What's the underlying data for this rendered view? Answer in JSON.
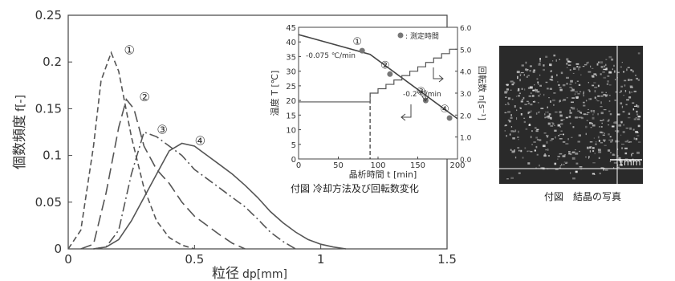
{
  "chart_data": [
    {
      "type": "line",
      "xlabel": "粒径 dp[mm]",
      "ylabel": "個数頻度 f[-]",
      "xlim": [
        0,
        1.5
      ],
      "ylim": [
        0,
        0.25
      ],
      "xticks": [
        "0",
        "0.5",
        "1",
        "1.5"
      ],
      "yticks": [
        "0",
        "0.05",
        "0.1",
        "0.15",
        "0.2",
        "0.25"
      ],
      "grid": false,
      "series": [
        {
          "name": "①",
          "style": "short-dash",
          "x": [
            0,
            0.05,
            0.1,
            0.13,
            0.17,
            0.2,
            0.25,
            0.3,
            0.35,
            0.4,
            0.45,
            0.5
          ],
          "y": [
            0,
            0.02,
            0.11,
            0.18,
            0.21,
            0.19,
            0.12,
            0.065,
            0.03,
            0.012,
            0.004,
            0
          ]
        },
        {
          "name": "②",
          "style": "long-dash",
          "x": [
            0.05,
            0.1,
            0.15,
            0.2,
            0.23,
            0.26,
            0.3,
            0.35,
            0.4,
            0.45,
            0.5,
            0.55,
            0.6,
            0.65,
            0.7
          ],
          "y": [
            0,
            0.005,
            0.06,
            0.13,
            0.16,
            0.15,
            0.11,
            0.085,
            0.07,
            0.05,
            0.035,
            0.025,
            0.015,
            0.006,
            0
          ]
        },
        {
          "name": "③",
          "style": "dash-dot",
          "x": [
            0.1,
            0.15,
            0.2,
            0.25,
            0.3,
            0.35,
            0.4,
            0.45,
            0.5,
            0.55,
            0.6,
            0.65,
            0.7,
            0.75,
            0.8,
            0.85,
            0.9
          ],
          "y": [
            0,
            0.002,
            0.02,
            0.08,
            0.125,
            0.12,
            0.11,
            0.1,
            0.085,
            0.075,
            0.065,
            0.055,
            0.045,
            0.032,
            0.018,
            0.008,
            0
          ]
        },
        {
          "name": "④",
          "style": "solid",
          "x": [
            0.1,
            0.15,
            0.2,
            0.25,
            0.3,
            0.35,
            0.4,
            0.45,
            0.5,
            0.55,
            0.6,
            0.65,
            0.7,
            0.75,
            0.8,
            0.85,
            0.9,
            0.95,
            1.0,
            1.05,
            1.1
          ],
          "y": [
            0,
            0.002,
            0.01,
            0.03,
            0.055,
            0.08,
            0.105,
            0.113,
            0.11,
            0.1,
            0.09,
            0.08,
            0.068,
            0.055,
            0.04,
            0.028,
            0.018,
            0.01,
            0.005,
            0.002,
            0
          ]
        }
      ]
    },
    {
      "type": "line",
      "xlabel": "晶析時間 t [min]",
      "ylabel": "温度 T [℃]",
      "y2label": "回転数 n[s⁻¹]",
      "xlim": [
        0,
        200
      ],
      "ylim": [
        0,
        45
      ],
      "y2lim": [
        0,
        6.0
      ],
      "xticks": [
        "0",
        "50",
        "100",
        "150",
        "200"
      ],
      "yticks": [
        "0",
        "5",
        "10",
        "15",
        "20",
        "25",
        "30",
        "35",
        "40",
        "45"
      ],
      "y2ticks": [
        "0.0",
        "1.0",
        "2.0",
        "3.0",
        "4.0",
        "5.0",
        "6.0"
      ],
      "legend": "● : 測定時間",
      "annotations": [
        "-0.075 ℃/min",
        "-0.2℃/min"
      ],
      "series": [
        {
          "name": "温度",
          "x": [
            0,
            90,
            200
          ],
          "y": [
            42.5,
            35.75,
            13.75
          ]
        },
        {
          "name": "回転数",
          "x": [
            0,
            90,
            90,
            100,
            110,
            120,
            130,
            140,
            150,
            160,
            170,
            180,
            190,
            200
          ],
          "y": [
            2.6,
            2.6,
            3.0,
            3.2,
            3.4,
            3.6,
            3.8,
            4.0,
            4.2,
            4.4,
            4.6,
            4.8,
            5.0,
            5.0
          ]
        },
        {
          "name": "測定時間",
          "x": [
            80,
            115,
            160,
            190
          ],
          "y": [
            37,
            29,
            20,
            14
          ],
          "labels": [
            "①",
            "②",
            "③",
            "④"
          ]
        }
      ],
      "vline_x": 90
    }
  ],
  "captions": {
    "inset": "付図 冷却方法及び回転数変化",
    "photo": "付図　結晶の写真",
    "scale": "1mm"
  }
}
